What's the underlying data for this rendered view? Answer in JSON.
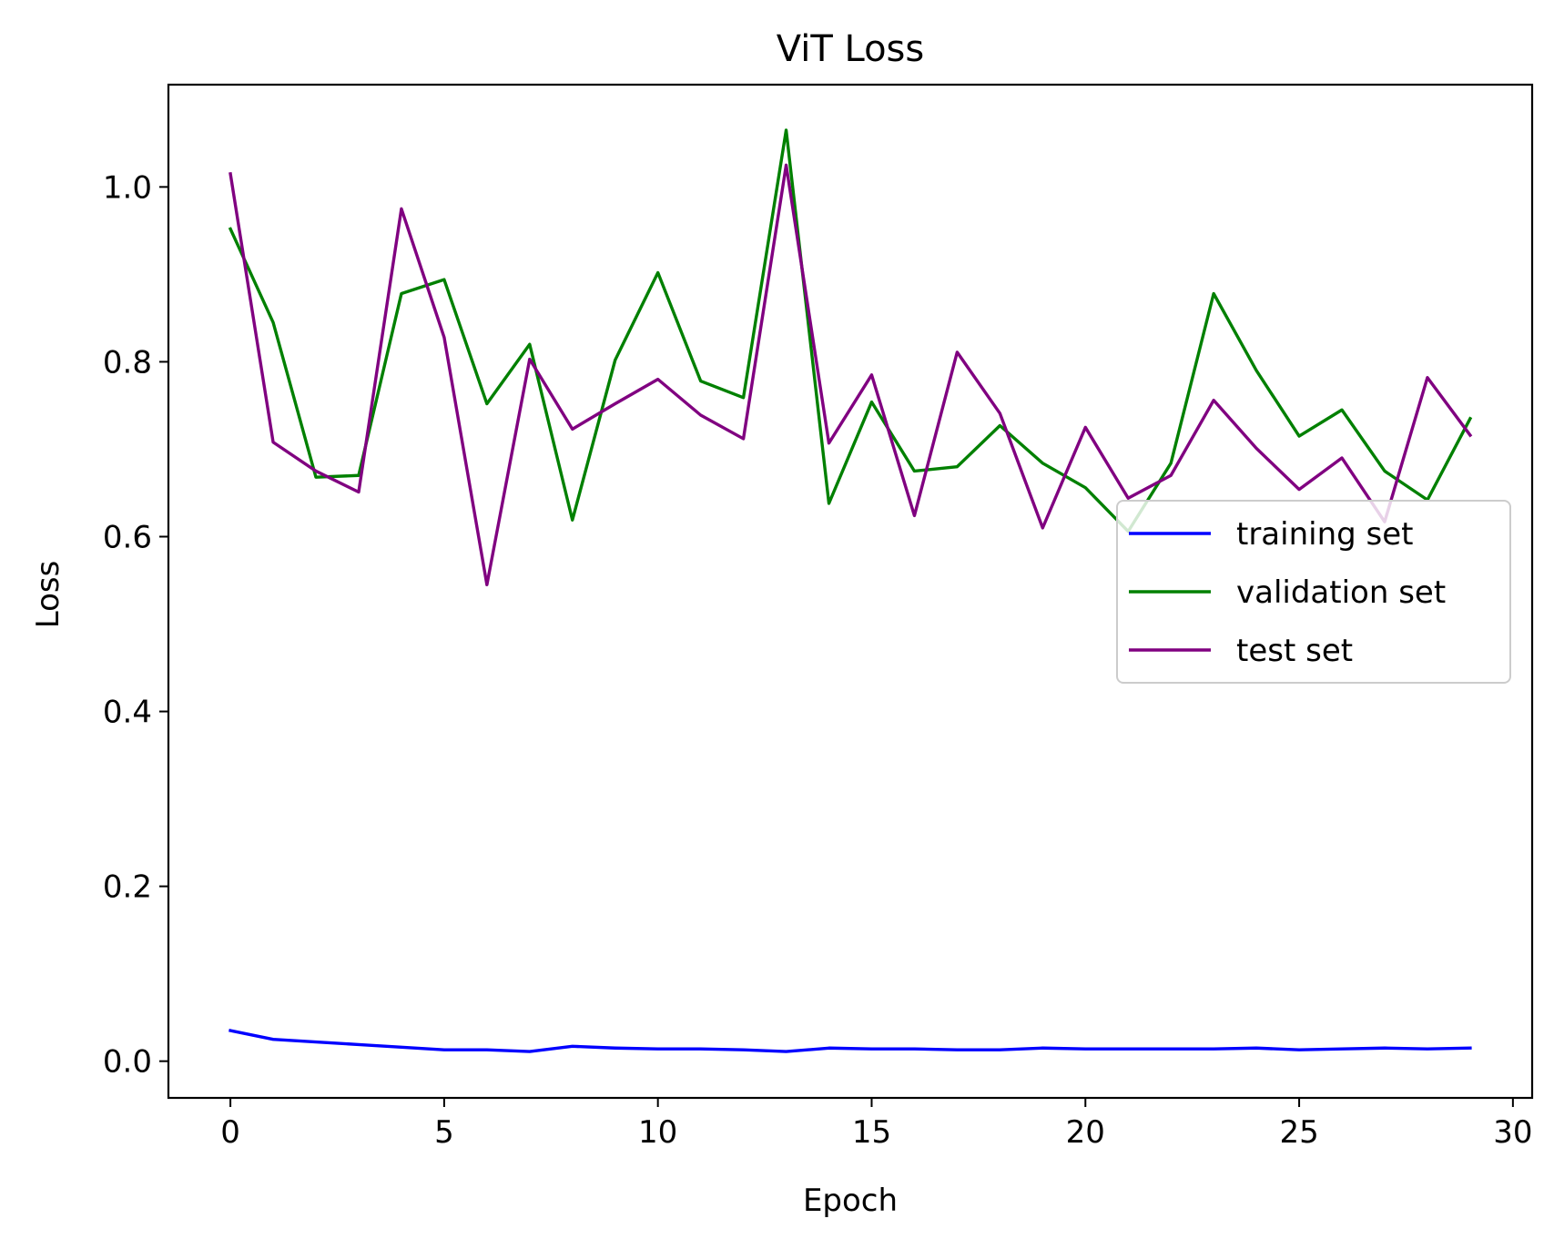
{
  "chart_data": {
    "type": "line",
    "title": "ViT Loss",
    "xlabel": "Epoch",
    "ylabel": "Loss",
    "xlim": [
      -1.45,
      30.45
    ],
    "ylim": [
      -0.042,
      1.117
    ],
    "xticks": [
      0,
      5,
      10,
      15,
      20,
      25,
      30
    ],
    "yticks": [
      0.0,
      0.2,
      0.4,
      0.6,
      0.8,
      1.0
    ],
    "xtick_labels": [
      "0",
      "5",
      "10",
      "15",
      "20",
      "25",
      "30"
    ],
    "ytick_labels": [
      "0.0",
      "0.2",
      "0.4",
      "0.6",
      "0.8",
      "1.0"
    ],
    "grid": false,
    "legend_position": "center-right",
    "x": [
      0,
      1,
      2,
      3,
      4,
      5,
      6,
      7,
      8,
      9,
      10,
      11,
      12,
      13,
      14,
      15,
      16,
      17,
      18,
      19,
      20,
      21,
      22,
      23,
      24,
      25,
      26,
      27,
      28,
      29
    ],
    "series": [
      {
        "name": "training set",
        "color": "#0000ff",
        "values": [
          0.035,
          0.025,
          0.022,
          0.019,
          0.016,
          0.013,
          0.013,
          0.011,
          0.017,
          0.015,
          0.014,
          0.014,
          0.013,
          0.011,
          0.015,
          0.014,
          0.014,
          0.013,
          0.013,
          0.015,
          0.014,
          0.014,
          0.014,
          0.014,
          0.015,
          0.013,
          0.014,
          0.015,
          0.014,
          0.015
        ]
      },
      {
        "name": "validation set",
        "color": "#008000",
        "values": [
          0.952,
          0.845,
          0.668,
          0.67,
          0.878,
          0.894,
          0.752,
          0.82,
          0.619,
          0.802,
          0.902,
          0.778,
          0.759,
          1.065,
          0.638,
          0.754,
          0.675,
          0.68,
          0.727,
          0.684,
          0.656,
          0.606,
          0.684,
          0.878,
          0.79,
          0.715,
          0.745,
          0.675,
          0.642,
          0.735
        ]
      },
      {
        "name": "test set",
        "color": "#800080",
        "values": [
          1.015,
          0.708,
          0.675,
          0.651,
          0.975,
          0.828,
          0.545,
          0.803,
          0.723,
          0.752,
          0.78,
          0.739,
          0.712,
          1.025,
          0.707,
          0.785,
          0.624,
          0.811,
          0.741,
          0.61,
          0.725,
          0.644,
          0.67,
          0.756,
          0.701,
          0.654,
          0.69,
          0.617,
          0.782,
          0.716
        ]
      }
    ]
  }
}
